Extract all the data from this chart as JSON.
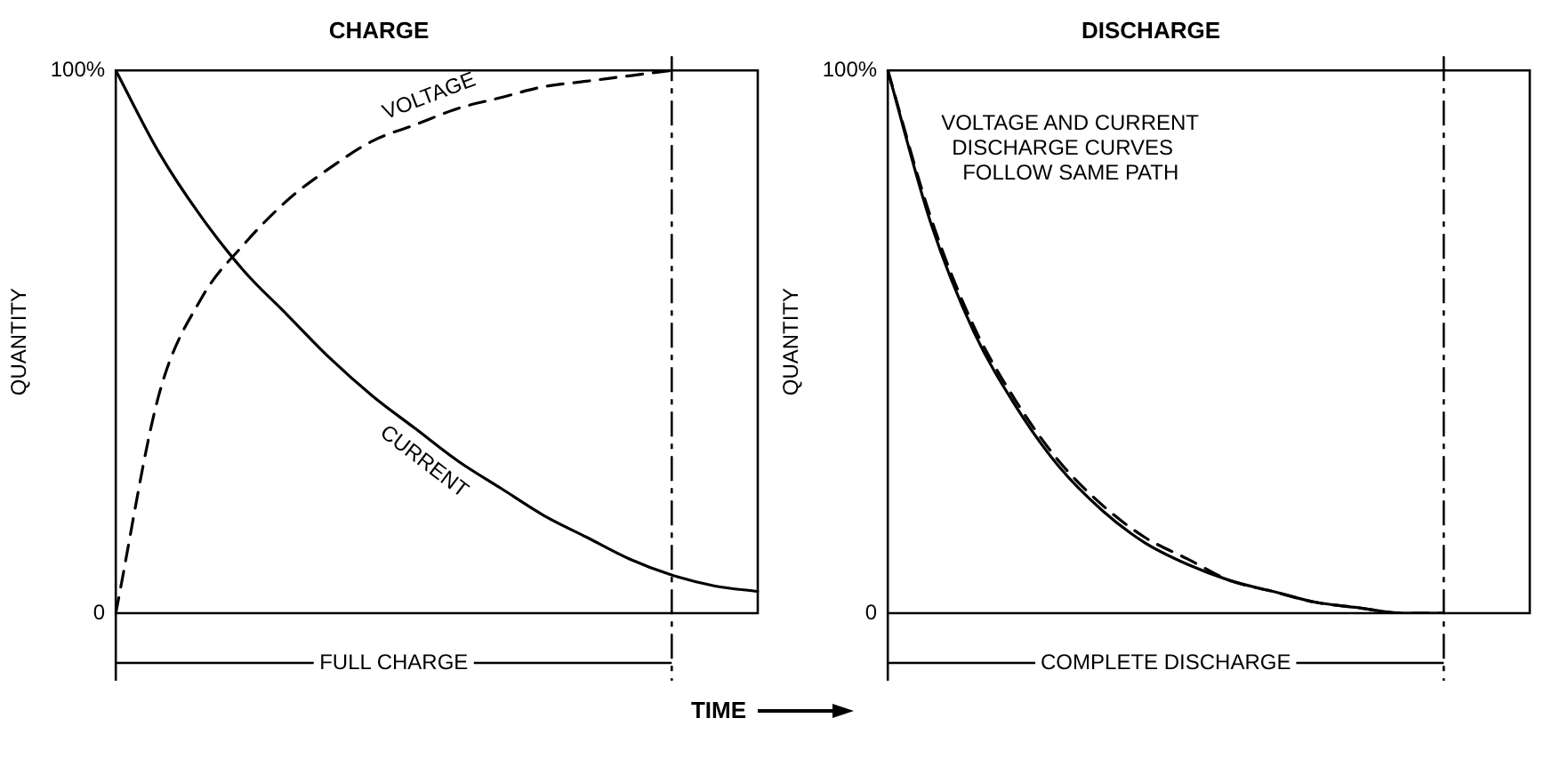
{
  "chart_data": [
    {
      "type": "line",
      "title": "CHARGE",
      "ylabel": "QUANTITY",
      "xlabel": "TIME",
      "categories": [
        null,
        null,
        null,
        null,
        null,
        null,
        null,
        null,
        null,
        null,
        null,
        null,
        null,
        null,
        null,
        null
      ],
      "series": [
        {
          "name": "VOLTAGE",
          "color": "#000000",
          "line_style": "dashed",
          "values": [
            0,
            40,
            58,
            68,
            76,
            82,
            87,
            90,
            93,
            95,
            97,
            98,
            99,
            100,
            null,
            null
          ]
        },
        {
          "name": "CURRENT",
          "color": "#000000",
          "line_style": "solid",
          "values": [
            100,
            85,
            73,
            63,
            55,
            47,
            40,
            34,
            28,
            23,
            18,
            14,
            10,
            7,
            5,
            4
          ]
        }
      ],
      "ylim": [
        0,
        100
      ],
      "yticks": [
        0,
        {
          "value": 100,
          "label": "100%"
        }
      ],
      "grid": false,
      "legend": false,
      "marker": "none",
      "ref_lines": [
        {
          "axis": "x",
          "label": "FULL CHARGE"
        }
      ]
    },
    {
      "type": "line",
      "title": "DISCHARGE",
      "ylabel": "QUANTITY",
      "categories": [
        null,
        null,
        null,
        null,
        null,
        null,
        null,
        null,
        null,
        null,
        null,
        null,
        null,
        null,
        null,
        null
      ],
      "series": [
        {
          "color": "#000000",
          "line_style": "dashed",
          "values": [
            100,
            73,
            53,
            39,
            28,
            20,
            14,
            10,
            6,
            4,
            2,
            1,
            0,
            0,
            null,
            null
          ]
        },
        {
          "color": "#000000",
          "line_style": "solid",
          "values": [
            100,
            72,
            52,
            38,
            27,
            19,
            13,
            9,
            6,
            4,
            2,
            1,
            0,
            0,
            null,
            null
          ]
        }
      ],
      "ylim": [
        0,
        100
      ],
      "yticks": [
        0,
        {
          "value": 100,
          "label": "100%"
        }
      ],
      "grid": false,
      "legend": false,
      "marker": "none",
      "annotations": [
        "VOLTAGE AND CURRENT\nDISCHARGE CURVES\nFOLLOW SAME PATH"
      ],
      "ref_lines": [
        {
          "axis": "x",
          "label": "COMPLETE DISCHARGE"
        }
      ]
    }
  ]
}
